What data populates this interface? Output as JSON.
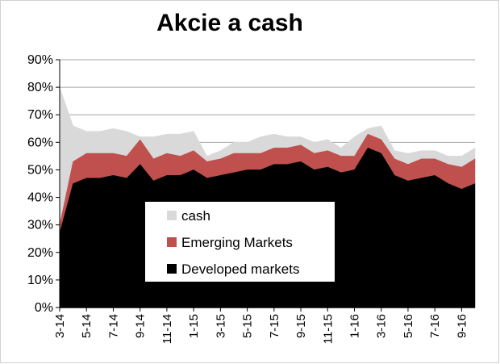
{
  "chart_data": {
    "type": "area",
    "stacked": true,
    "title": "Akcie a cash",
    "xlabel": "",
    "ylabel": "",
    "ylim": [
      0,
      90
    ],
    "y_ticks": [
      "0%",
      "10%",
      "20%",
      "30%",
      "40%",
      "50%",
      "60%",
      "70%",
      "80%",
      "90%"
    ],
    "x_ticks": [
      "3-14",
      "5-14",
      "7-14",
      "9-14",
      "11-14",
      "1-15",
      "3-15",
      "5-15",
      "7-15",
      "9-15",
      "11-15",
      "1-16",
      "3-16",
      "5-16",
      "7-16",
      "9-16"
    ],
    "grid": true,
    "legend_position": "center",
    "x": [
      "3-14",
      "4-14",
      "5-14",
      "6-14",
      "7-14",
      "8-14",
      "9-14",
      "10-14",
      "11-14",
      "12-14",
      "1-15",
      "2-15",
      "3-15",
      "4-15",
      "5-15",
      "6-15",
      "7-15",
      "8-15",
      "9-15",
      "10-15",
      "11-15",
      "12-15",
      "1-16",
      "2-16",
      "3-16",
      "4-16",
      "5-16",
      "6-16",
      "7-16",
      "8-16",
      "9-16",
      "10-16"
    ],
    "series": [
      {
        "name": "Developed markets",
        "color": "#000000",
        "values": [
          27,
          45,
          47,
          47,
          48,
          47,
          52,
          46,
          48,
          48,
          50,
          47,
          48,
          49,
          50,
          50,
          52,
          52,
          53,
          50,
          51,
          49,
          50,
          58,
          56,
          48,
          46,
          47,
          48,
          45,
          43,
          45
        ]
      },
      {
        "name": "Emerging Markets",
        "color": "#c0504d",
        "values": [
          3,
          8,
          9,
          9,
          8,
          8,
          9,
          8,
          8,
          7,
          7,
          6,
          6,
          7,
          6,
          6,
          6,
          6,
          6,
          6,
          6,
          6,
          5,
          5,
          5,
          6,
          6,
          7,
          6,
          7,
          8,
          9
        ]
      },
      {
        "name": "cash",
        "color": "#d9d9d9",
        "values": [
          50,
          13,
          8,
          8,
          9,
          9,
          1,
          8,
          7,
          8,
          7,
          2,
          3,
          4,
          4,
          6,
          5,
          4,
          3,
          4,
          4,
          3,
          7,
          2,
          5,
          3,
          4,
          3,
          3,
          3,
          4,
          4
        ]
      }
    ]
  }
}
